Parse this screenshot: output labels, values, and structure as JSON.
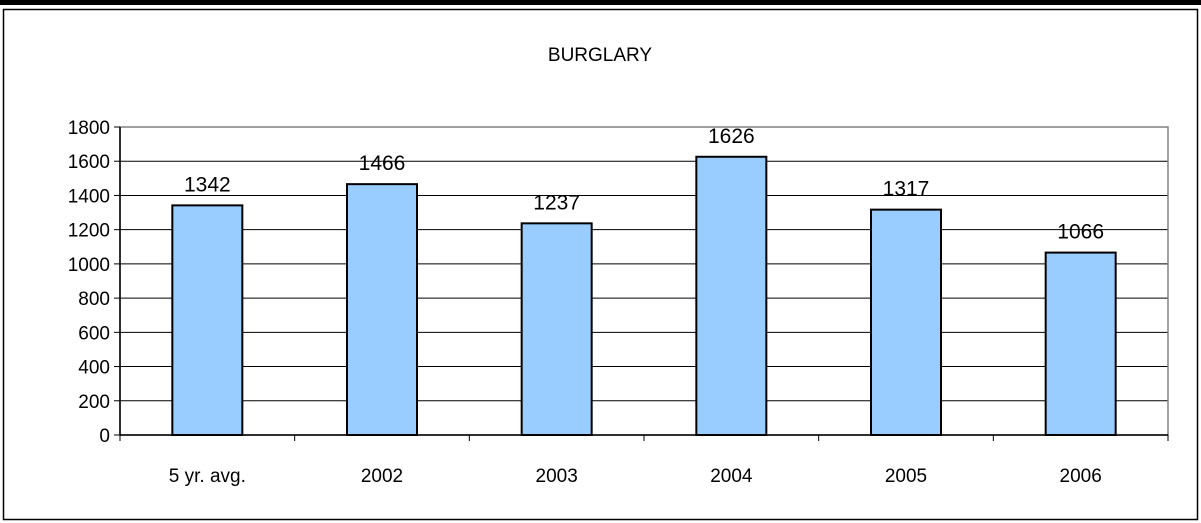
{
  "chart_data": {
    "type": "bar",
    "title": "BURGLARY",
    "xlabel": "",
    "ylabel": "",
    "categories": [
      "5 yr. avg.",
      "2002",
      "2003",
      "2004",
      "2005",
      "2006"
    ],
    "values": [
      1342,
      1466,
      1237,
      1626,
      1317,
      1066
    ],
    "data_labels": [
      "1342",
      "1466",
      "1237",
      "1626",
      "1317",
      "1066"
    ],
    "ylim": [
      0,
      1800
    ],
    "yticks": [
      0,
      200,
      400,
      600,
      800,
      1000,
      1200,
      1400,
      1600,
      1800
    ],
    "ytick_labels": [
      "0",
      "200",
      "400",
      "600",
      "800",
      "1000",
      "1200",
      "1400",
      "1600",
      "1800"
    ],
    "grid": true,
    "legend": "none",
    "colors": {
      "bar_fill": "#99ccff",
      "bar_stroke": "#000000",
      "grid": "#000000",
      "plot_border": "#808080",
      "frame": "#000000"
    }
  }
}
